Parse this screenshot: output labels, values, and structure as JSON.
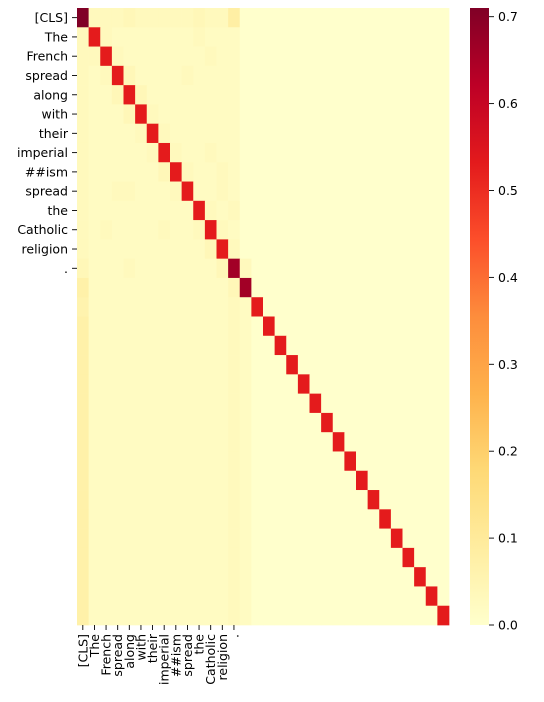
{
  "chart_data": {
    "type": "heatmap",
    "title": "",
    "xlabel": "",
    "ylabel": "",
    "x_tick_labels": [
      "[CLS]",
      "The",
      "French",
      "spread",
      "along",
      "with",
      "their",
      "imperial",
      "##ism",
      "spread",
      "the",
      "Catholic",
      "religion",
      "."
    ],
    "y_tick_labels": [
      "[CLS]",
      "The",
      "French",
      "spread",
      "along",
      "with",
      "their",
      "imperial",
      "##ism",
      "spread",
      "the",
      "Catholic",
      "religion",
      "."
    ],
    "n_rows": 32,
    "n_cols": 32,
    "colormap": "YlOrRd",
    "vmin": 0.0,
    "vmax": 0.71,
    "colorbar_ticks": [
      0.0,
      0.1,
      0.2,
      0.3,
      0.4,
      0.5,
      0.6,
      0.7
    ],
    "colorbar_tick_labels": [
      "0.0",
      "0.1",
      "0.2",
      "0.3",
      "0.4",
      "0.5",
      "0.6",
      "0.7"
    ],
    "values": [
      [
        0.71,
        0.03,
        0.03,
        0.03,
        0.04,
        0.03,
        0.03,
        0.03,
        0.03,
        0.03,
        0.04,
        0.03,
        0.03,
        0.08,
        0,
        0,
        0,
        0,
        0,
        0,
        0,
        0,
        0,
        0,
        0,
        0,
        0,
        0,
        0,
        0,
        0,
        0
      ],
      [
        0.03,
        0.53,
        0.03,
        0.02,
        0.02,
        0.02,
        0.02,
        0.02,
        0.02,
        0.02,
        0.03,
        0.02,
        0.02,
        0.02,
        0,
        0,
        0,
        0,
        0,
        0,
        0,
        0,
        0,
        0,
        0,
        0,
        0,
        0,
        0,
        0,
        0,
        0
      ],
      [
        0.03,
        0.03,
        0.53,
        0.03,
        0.02,
        0.02,
        0.02,
        0.02,
        0.02,
        0.02,
        0.02,
        0.03,
        0.02,
        0.02,
        0,
        0,
        0,
        0,
        0,
        0,
        0,
        0,
        0,
        0,
        0,
        0,
        0,
        0,
        0,
        0,
        0,
        0
      ],
      [
        0.03,
        0.02,
        0.03,
        0.53,
        0.04,
        0.02,
        0.02,
        0.02,
        0.02,
        0.03,
        0.02,
        0.02,
        0.02,
        0.02,
        0,
        0,
        0,
        0,
        0,
        0,
        0,
        0,
        0,
        0,
        0,
        0,
        0,
        0,
        0,
        0,
        0,
        0
      ],
      [
        0.03,
        0.02,
        0.02,
        0.04,
        0.53,
        0.04,
        0.02,
        0.02,
        0.02,
        0.02,
        0.02,
        0.02,
        0.02,
        0.02,
        0,
        0,
        0,
        0,
        0,
        0,
        0,
        0,
        0,
        0,
        0,
        0,
        0,
        0,
        0,
        0,
        0,
        0
      ],
      [
        0.03,
        0.02,
        0.02,
        0.02,
        0.04,
        0.53,
        0.03,
        0.02,
        0.02,
        0.02,
        0.02,
        0.02,
        0.02,
        0.02,
        0,
        0,
        0,
        0,
        0,
        0,
        0,
        0,
        0,
        0,
        0,
        0,
        0,
        0,
        0,
        0,
        0,
        0
      ],
      [
        0.03,
        0.02,
        0.02,
        0.02,
        0.02,
        0.03,
        0.53,
        0.03,
        0.02,
        0.02,
        0.02,
        0.02,
        0.02,
        0.02,
        0,
        0,
        0,
        0,
        0,
        0,
        0,
        0,
        0,
        0,
        0,
        0,
        0,
        0,
        0,
        0,
        0,
        0
      ],
      [
        0.03,
        0.02,
        0.02,
        0.02,
        0.02,
        0.02,
        0.03,
        0.53,
        0.03,
        0.02,
        0.02,
        0.03,
        0.02,
        0.02,
        0,
        0,
        0,
        0,
        0,
        0,
        0,
        0,
        0,
        0,
        0,
        0,
        0,
        0,
        0,
        0,
        0,
        0
      ],
      [
        0.03,
        0.02,
        0.02,
        0.02,
        0.02,
        0.02,
        0.02,
        0.04,
        0.53,
        0.03,
        0.02,
        0.02,
        0.03,
        0.02,
        0,
        0,
        0,
        0,
        0,
        0,
        0,
        0,
        0,
        0,
        0,
        0,
        0,
        0,
        0,
        0,
        0,
        0
      ],
      [
        0.03,
        0.02,
        0.02,
        0.03,
        0.03,
        0.02,
        0.02,
        0.02,
        0.03,
        0.53,
        0.02,
        0.02,
        0.03,
        0.02,
        0,
        0,
        0,
        0,
        0,
        0,
        0,
        0,
        0,
        0,
        0,
        0,
        0,
        0,
        0,
        0,
        0,
        0
      ],
      [
        0.03,
        0.02,
        0.02,
        0.02,
        0.02,
        0.02,
        0.02,
        0.02,
        0.02,
        0.02,
        0.53,
        0.03,
        0.02,
        0.03,
        0,
        0,
        0,
        0,
        0,
        0,
        0,
        0,
        0,
        0,
        0,
        0,
        0,
        0,
        0,
        0,
        0,
        0
      ],
      [
        0.03,
        0.02,
        0.03,
        0.02,
        0.02,
        0.02,
        0.02,
        0.03,
        0.02,
        0.02,
        0.03,
        0.53,
        0.03,
        0.02,
        0,
        0,
        0,
        0,
        0,
        0,
        0,
        0,
        0,
        0,
        0,
        0,
        0,
        0,
        0,
        0,
        0,
        0
      ],
      [
        0.03,
        0.02,
        0.02,
        0.02,
        0.02,
        0.02,
        0.02,
        0.02,
        0.02,
        0.02,
        0.02,
        0.04,
        0.53,
        0.03,
        0,
        0,
        0,
        0,
        0,
        0,
        0,
        0,
        0,
        0,
        0,
        0,
        0,
        0,
        0,
        0,
        0,
        0
      ],
      [
        0.04,
        0.02,
        0.02,
        0.02,
        0.03,
        0.02,
        0.02,
        0.02,
        0.02,
        0.02,
        0.02,
        0.02,
        0.04,
        0.66,
        0.03,
        0,
        0,
        0,
        0,
        0,
        0,
        0,
        0,
        0,
        0,
        0,
        0,
        0,
        0,
        0,
        0,
        0
      ],
      [
        0.07,
        0.02,
        0.02,
        0.02,
        0.02,
        0.02,
        0.02,
        0.02,
        0.02,
        0.02,
        0.02,
        0.02,
        0.02,
        0.04,
        0.66,
        0,
        0,
        0,
        0,
        0,
        0,
        0,
        0,
        0,
        0,
        0,
        0,
        0,
        0,
        0,
        0,
        0
      ],
      [
        0.06,
        0.02,
        0.02,
        0.02,
        0.02,
        0.02,
        0.02,
        0.02,
        0.02,
        0.02,
        0.02,
        0.02,
        0.02,
        0.03,
        0.02,
        0.53,
        0,
        0,
        0,
        0,
        0,
        0,
        0,
        0,
        0,
        0,
        0,
        0,
        0,
        0,
        0,
        0
      ],
      [
        0.07,
        0.02,
        0.02,
        0.02,
        0.02,
        0.02,
        0.02,
        0.02,
        0.02,
        0.02,
        0.02,
        0.02,
        0.02,
        0.03,
        0.02,
        0,
        0.53,
        0,
        0,
        0,
        0,
        0,
        0,
        0,
        0,
        0,
        0,
        0,
        0,
        0,
        0,
        0
      ],
      [
        0.07,
        0.02,
        0.02,
        0.02,
        0.02,
        0.02,
        0.02,
        0.02,
        0.02,
        0.02,
        0.02,
        0.02,
        0.02,
        0.03,
        0.02,
        0,
        0,
        0.53,
        0,
        0,
        0,
        0,
        0,
        0,
        0,
        0,
        0,
        0,
        0,
        0,
        0,
        0
      ],
      [
        0.07,
        0.02,
        0.02,
        0.02,
        0.02,
        0.02,
        0.02,
        0.02,
        0.02,
        0.02,
        0.02,
        0.02,
        0.02,
        0.03,
        0.02,
        0,
        0,
        0,
        0.53,
        0,
        0,
        0,
        0,
        0,
        0,
        0,
        0,
        0,
        0,
        0,
        0,
        0
      ],
      [
        0.07,
        0.02,
        0.02,
        0.02,
        0.02,
        0.02,
        0.02,
        0.02,
        0.02,
        0.02,
        0.02,
        0.02,
        0.02,
        0.03,
        0.02,
        0,
        0,
        0,
        0,
        0.53,
        0,
        0,
        0,
        0,
        0,
        0,
        0,
        0,
        0,
        0,
        0,
        0
      ],
      [
        0.07,
        0.02,
        0.02,
        0.02,
        0.02,
        0.02,
        0.02,
        0.02,
        0.02,
        0.02,
        0.02,
        0.02,
        0.02,
        0.03,
        0.02,
        0,
        0,
        0,
        0,
        0,
        0.53,
        0,
        0,
        0,
        0,
        0,
        0,
        0,
        0,
        0,
        0,
        0
      ],
      [
        0.07,
        0.02,
        0.02,
        0.02,
        0.02,
        0.02,
        0.02,
        0.02,
        0.02,
        0.02,
        0.02,
        0.02,
        0.02,
        0.03,
        0.02,
        0,
        0,
        0,
        0,
        0,
        0,
        0.53,
        0,
        0,
        0,
        0,
        0,
        0,
        0,
        0,
        0,
        0
      ],
      [
        0.07,
        0.02,
        0.02,
        0.02,
        0.02,
        0.02,
        0.02,
        0.02,
        0.02,
        0.02,
        0.02,
        0.02,
        0.02,
        0.03,
        0.02,
        0,
        0,
        0,
        0,
        0,
        0,
        0,
        0.53,
        0,
        0,
        0,
        0,
        0,
        0,
        0,
        0,
        0
      ],
      [
        0.07,
        0.02,
        0.02,
        0.02,
        0.02,
        0.02,
        0.02,
        0.02,
        0.02,
        0.02,
        0.02,
        0.02,
        0.02,
        0.03,
        0.02,
        0,
        0,
        0,
        0,
        0,
        0,
        0,
        0,
        0.53,
        0,
        0,
        0,
        0,
        0,
        0,
        0,
        0
      ],
      [
        0.07,
        0.02,
        0.02,
        0.02,
        0.02,
        0.02,
        0.02,
        0.02,
        0.02,
        0.02,
        0.02,
        0.02,
        0.02,
        0.03,
        0.02,
        0,
        0,
        0,
        0,
        0,
        0,
        0,
        0,
        0,
        0.53,
        0,
        0,
        0,
        0,
        0,
        0,
        0
      ],
      [
        0.07,
        0.02,
        0.02,
        0.02,
        0.02,
        0.02,
        0.02,
        0.02,
        0.02,
        0.02,
        0.02,
        0.02,
        0.02,
        0.03,
        0.02,
        0,
        0,
        0,
        0,
        0,
        0,
        0,
        0,
        0,
        0,
        0.53,
        0,
        0,
        0,
        0,
        0,
        0
      ],
      [
        0.07,
        0.02,
        0.02,
        0.02,
        0.02,
        0.02,
        0.02,
        0.02,
        0.02,
        0.02,
        0.02,
        0.02,
        0.02,
        0.03,
        0.02,
        0,
        0,
        0,
        0,
        0,
        0,
        0,
        0,
        0,
        0,
        0,
        0.53,
        0,
        0,
        0,
        0,
        0
      ],
      [
        0.07,
        0.02,
        0.02,
        0.02,
        0.02,
        0.02,
        0.02,
        0.02,
        0.02,
        0.02,
        0.02,
        0.02,
        0.02,
        0.03,
        0.02,
        0,
        0,
        0,
        0,
        0,
        0,
        0,
        0,
        0,
        0,
        0,
        0,
        0.53,
        0,
        0,
        0,
        0
      ],
      [
        0.07,
        0.02,
        0.02,
        0.02,
        0.02,
        0.02,
        0.02,
        0.02,
        0.02,
        0.02,
        0.02,
        0.02,
        0.02,
        0.03,
        0.02,
        0,
        0,
        0,
        0,
        0,
        0,
        0,
        0,
        0,
        0,
        0,
        0,
        0,
        0.53,
        0,
        0,
        0
      ],
      [
        0.07,
        0.02,
        0.02,
        0.02,
        0.02,
        0.02,
        0.02,
        0.02,
        0.02,
        0.02,
        0.02,
        0.02,
        0.02,
        0.03,
        0.02,
        0,
        0,
        0,
        0,
        0,
        0,
        0,
        0,
        0,
        0,
        0,
        0,
        0,
        0,
        0.53,
        0,
        0
      ],
      [
        0.07,
        0.02,
        0.02,
        0.02,
        0.02,
        0.02,
        0.02,
        0.02,
        0.02,
        0.02,
        0.02,
        0.02,
        0.02,
        0.03,
        0.02,
        0,
        0,
        0,
        0,
        0,
        0,
        0,
        0,
        0,
        0,
        0,
        0,
        0,
        0,
        0,
        0.53,
        0
      ],
      [
        0.07,
        0.02,
        0.02,
        0.02,
        0.02,
        0.02,
        0.02,
        0.02,
        0.02,
        0.02,
        0.02,
        0.02,
        0.02,
        0.03,
        0.02,
        0,
        0,
        0,
        0,
        0,
        0,
        0,
        0,
        0,
        0,
        0,
        0,
        0,
        0,
        0,
        0,
        0.53
      ]
    ]
  }
}
